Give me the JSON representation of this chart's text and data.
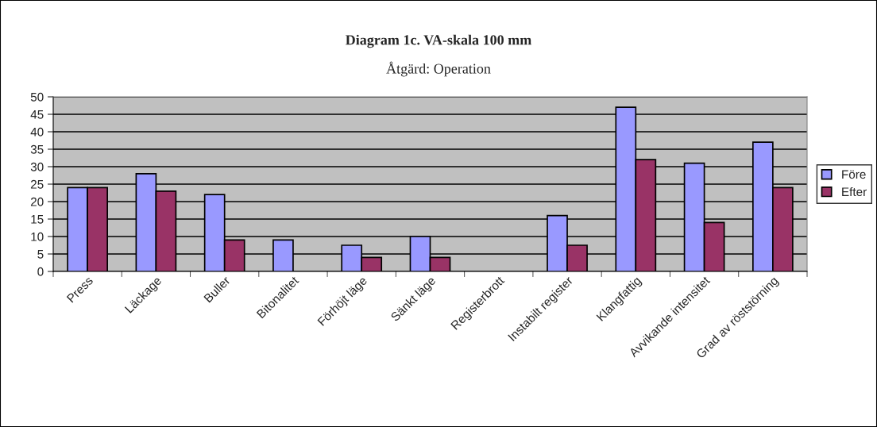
{
  "chart_data": {
    "type": "bar",
    "title": "Diagram 1c. VA-skala 100 mm",
    "subtitle": "Åtgärd: Operation",
    "categories": [
      "Press",
      "Läckage",
      "Buller",
      "Bitonalitet",
      "Förhöjt läge",
      "Sänkt läge",
      "Registerbrott",
      "Instabilt register",
      "Klangfattig",
      "Avvikande intensitet",
      "Grad av röststörning"
    ],
    "series": [
      {
        "name": "Före",
        "color": "#9999ff",
        "values": [
          24,
          28,
          22,
          9,
          7.5,
          10,
          null,
          16,
          47,
          31,
          37
        ]
      },
      {
        "name": "Efter",
        "color": "#993366",
        "values": [
          24,
          23,
          9,
          null,
          4,
          4,
          null,
          7.5,
          32,
          14,
          24
        ]
      }
    ],
    "ylim": [
      0,
      50
    ],
    "yticks": [
      0,
      5,
      10,
      15,
      20,
      25,
      30,
      35,
      40,
      45,
      50
    ],
    "grid": "y",
    "legend": "right"
  }
}
